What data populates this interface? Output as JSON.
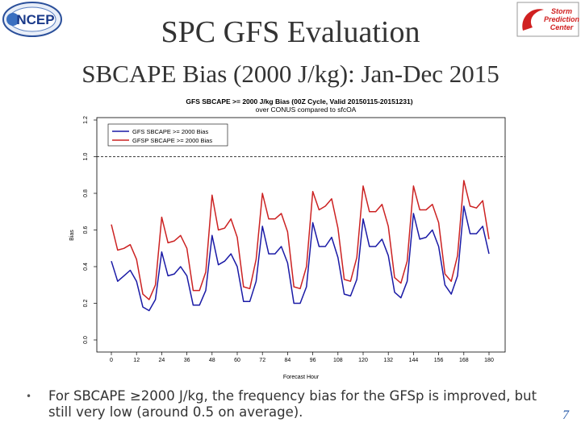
{
  "logos": {
    "ncep_text": "NCEP",
    "spc_text_1": "Storm",
    "spc_text_2": "Prediction",
    "spc_text_3": "Center"
  },
  "slide": {
    "title": "SPC GFS Evaluation",
    "subtitle": "SBCAPE Bias (2000 J/kg): Jan-Dec 2015",
    "bullet": "For SBCAPE ≥2000 J/kg, the frequency bias for the GFSp is improved, but still very low (around 0.5 on average).",
    "page_number": "7"
  },
  "chart_data": {
    "type": "line",
    "title": "GFS SBCAPE >= 2000 J/kg Bias (00Z Cycle, Valid 20150115-20151231)",
    "subtitle": "over CONUS compared to sfcOA",
    "xlabel": "Forecast Hour",
    "ylabel": "Bias",
    "xlim": [
      0,
      180
    ],
    "ylim": [
      0,
      1.2
    ],
    "xticks": [
      0,
      12,
      24,
      36,
      48,
      60,
      72,
      84,
      96,
      108,
      120,
      132,
      144,
      156,
      168,
      180
    ],
    "yticks": [
      0.0,
      0.2,
      0.4,
      0.6,
      0.8,
      1.0,
      1.2
    ],
    "ytick_labels": [
      "0.0",
      "0.2",
      "0.4",
      "0.6",
      "0.8",
      "1.0",
      "1.2"
    ],
    "reference_line": 1.0,
    "legend_position": "top-left",
    "x": [
      0,
      3,
      6,
      9,
      12,
      15,
      18,
      21,
      24,
      27,
      30,
      33,
      36,
      39,
      42,
      45,
      48,
      51,
      54,
      57,
      60,
      63,
      66,
      69,
      72,
      75,
      78,
      81,
      84,
      87,
      90,
      93,
      96,
      99,
      102,
      105,
      108,
      111,
      114,
      117,
      120,
      123,
      126,
      129,
      132,
      135,
      138,
      141,
      144,
      147,
      150,
      153,
      156,
      159,
      162,
      165,
      168,
      171,
      174,
      177,
      180
    ],
    "series": [
      {
        "name": "GFS SBCAPE >= 2000 Bias",
        "color": "#1a1aa6",
        "values": [
          0.43,
          0.32,
          0.35,
          0.38,
          0.32,
          0.18,
          0.16,
          0.22,
          0.48,
          0.35,
          0.36,
          0.4,
          0.35,
          0.19,
          0.19,
          0.27,
          0.57,
          0.41,
          0.43,
          0.47,
          0.4,
          0.21,
          0.21,
          0.32,
          0.62,
          0.47,
          0.47,
          0.51,
          0.42,
          0.2,
          0.2,
          0.29,
          0.64,
          0.51,
          0.51,
          0.56,
          0.45,
          0.25,
          0.24,
          0.33,
          0.66,
          0.51,
          0.51,
          0.55,
          0.46,
          0.26,
          0.23,
          0.32,
          0.69,
          0.55,
          0.56,
          0.6,
          0.51,
          0.3,
          0.25,
          0.35,
          0.73,
          0.58,
          0.58,
          0.62,
          0.47
        ]
      },
      {
        "name": "GFSP SBCAPE >= 2000 Bias",
        "color": "#cc2222",
        "values": [
          0.63,
          0.49,
          0.5,
          0.52,
          0.44,
          0.25,
          0.22,
          0.3,
          0.67,
          0.53,
          0.54,
          0.57,
          0.5,
          0.27,
          0.27,
          0.37,
          0.79,
          0.6,
          0.61,
          0.66,
          0.56,
          0.29,
          0.28,
          0.44,
          0.8,
          0.66,
          0.66,
          0.69,
          0.59,
          0.29,
          0.28,
          0.4,
          0.81,
          0.71,
          0.73,
          0.77,
          0.61,
          0.33,
          0.32,
          0.45,
          0.84,
          0.7,
          0.7,
          0.74,
          0.62,
          0.34,
          0.31,
          0.43,
          0.84,
          0.71,
          0.71,
          0.74,
          0.64,
          0.36,
          0.32,
          0.46,
          0.87,
          0.73,
          0.72,
          0.76,
          0.55
        ]
      }
    ]
  }
}
